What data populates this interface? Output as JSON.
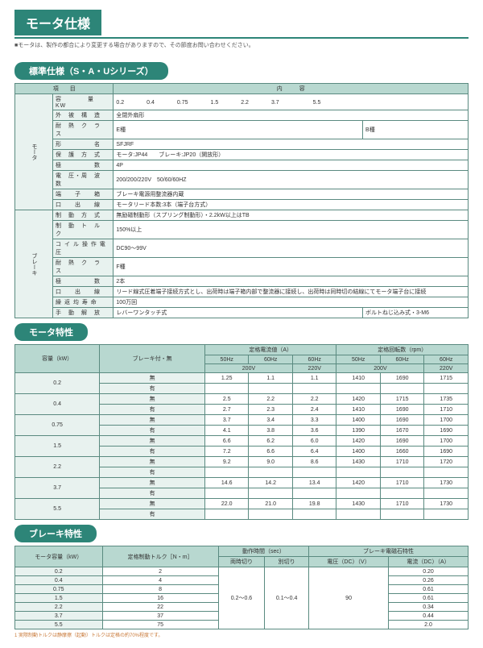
{
  "page": {
    "title": "モータ仕様",
    "subtitle": "■モータは、製作の都合により変更する場合がありますので、その節度お問い合わせください。"
  },
  "sec1": {
    "header": "標準仕様（S・A・Uシリーズ）",
    "h_item": "項　　目",
    "h_content": "内　　　容",
    "rows": {
      "r1l": "容　　　　量　　KW",
      "r1v": "0.2　　　　0.4　　　　0.75　　　　1.5　　　　2.2　　　　3.7　　　　　　5.5",
      "r2l": "外　被　構　造",
      "r2v": "全閉外扇形",
      "r3l": "耐　熱　ク　ラ　ス",
      "r3va": "E種",
      "r3vb": "B種",
      "r4l": "形　　　　　名",
      "r4v": "SFJRF",
      "r5l": "保　護　方　式",
      "r5v": "モータ:JP44　　ブレーキ:JP20（開放形）",
      "r6l": "極　　　　　数",
      "r6v": "4P",
      "r7l": "電　圧・周　波　数",
      "r7v": "200/200/220V　50/60/60HZ",
      "r8l": "端　　子　　箱",
      "r8v": "ブレーキ電源用整流器内蔵",
      "r9l": "口　　出　　線",
      "r9v": "モータリード本数:3本（端子台方式）",
      "r10l": "制　動　方　式",
      "r10v": "無励磁制動形（スプリング制動形）・2.2kW以上はTB",
      "r11l": "制　動　ト　ル　ク",
      "r11v": "150%以上",
      "r12l": "コ イ ル 操 作 電 圧",
      "r12v": "DC90〜99V",
      "r13l": "耐　熱　ク　ラ　ス",
      "r13v": "F種",
      "r14l": "極　　　　　数",
      "r14v": "2本",
      "r15l": "口　　出　　線",
      "r15v": "リード線式圧着端子接続方式とし、出荷時は端子箱内部で整流器に接続し、出荷時は同時切の結線にてモータ端子台に接続",
      "r16l": "繰 返 均 寿 命",
      "r16v": "100万回",
      "r17l": "手　動　解　放",
      "r17va": "レバーワンタッチ式",
      "r17vb": "ボルトねじ込み式・3-M6"
    },
    "side1": "モータ",
    "side2": "ブレーキ"
  },
  "sec2": {
    "header": "モータ特性",
    "h": {
      "cap": "容量（kW）",
      "brk": "ブレーキ付・無",
      "cur": "定格電流値（A）",
      "rpm": "定格回転数（rpm）",
      "c50": "50Hz",
      "c60a": "60Hz",
      "c60b": "60Hz",
      "v200": "200V",
      "v220": "220V"
    },
    "rows": [
      {
        "kw": "0.2",
        "a": "無",
        "c": [
          "1.25",
          "1.1",
          "1.1"
        ],
        "r": [
          "1410",
          "1690",
          "1715"
        ]
      },
      {
        "kw": "",
        "a": "有",
        "c": [
          "",
          "",
          ""
        ],
        "r": [
          "",
          "",
          ""
        ]
      },
      {
        "kw": "0.4",
        "a": "無",
        "c": [
          "2.5",
          "2.2",
          "2.2"
        ],
        "r": [
          "1420",
          "1715",
          "1735"
        ]
      },
      {
        "kw": "",
        "a": "有",
        "c": [
          "2.7",
          "2.3",
          "2.4"
        ],
        "r": [
          "1410",
          "1690",
          "1710"
        ]
      },
      {
        "kw": "0.75",
        "a": "無",
        "c": [
          "3.7",
          "3.4",
          "3.3"
        ],
        "r": [
          "1400",
          "1690",
          "1700"
        ]
      },
      {
        "kw": "",
        "a": "有",
        "c": [
          "4.1",
          "3.8",
          "3.6"
        ],
        "r": [
          "1390",
          "1670",
          "1690"
        ]
      },
      {
        "kw": "1.5",
        "a": "無",
        "c": [
          "6.6",
          "6.2",
          "6.0"
        ],
        "r": [
          "1420",
          "1690",
          "1700"
        ]
      },
      {
        "kw": "",
        "a": "有",
        "c": [
          "7.2",
          "6.6",
          "6.4"
        ],
        "r": [
          "1400",
          "1660",
          "1690"
        ]
      },
      {
        "kw": "2.2",
        "a": "無",
        "c": [
          "9.2",
          "9.0",
          "8.6"
        ],
        "r": [
          "1430",
          "1710",
          "1720"
        ]
      },
      {
        "kw": "",
        "a": "有",
        "c": [
          "",
          "",
          ""
        ],
        "r": [
          "",
          "",
          ""
        ]
      },
      {
        "kw": "3.7",
        "a": "無",
        "c": [
          "14.6",
          "14.2",
          "13.4"
        ],
        "r": [
          "1420",
          "1710",
          "1730"
        ]
      },
      {
        "kw": "",
        "a": "有",
        "c": [
          "",
          "",
          ""
        ],
        "r": [
          "",
          "",
          ""
        ]
      },
      {
        "kw": "5.5",
        "a": "無",
        "c": [
          "22.0",
          "21.0",
          "19.8"
        ],
        "r": [
          "1430",
          "1710",
          "1730"
        ]
      },
      {
        "kw": "",
        "a": "有",
        "c": [
          "",
          "",
          ""
        ],
        "r": [
          "",
          "",
          ""
        ]
      }
    ]
  },
  "sec3": {
    "header": "ブレーキ特性",
    "h": {
      "cap": "モータ容量（kW）",
      "trq": "定格制動トルク［N・m］",
      "time": "動作時間（sec）",
      "mag": "ブレーキ電磁石特性",
      "t1": "両時切り",
      "t2": "別切り",
      "v": "電圧（DC）（V）",
      "a": "電流（DC）（A）"
    },
    "rows": [
      {
        "kw": "0.2",
        "tq": "2",
        "a": "0.20"
      },
      {
        "kw": "0.4",
        "tq": "4",
        "a": "0.26"
      },
      {
        "kw": "0.75",
        "tq": "8",
        "a": "0.61"
      },
      {
        "kw": "1.5",
        "tq": "16",
        "a": "0.61"
      },
      {
        "kw": "2.2",
        "tq": "22",
        "a": "0.34"
      },
      {
        "kw": "3.7",
        "tq": "37",
        "a": "0.44"
      },
      {
        "kw": "5.5",
        "tq": "75",
        "a": "2.0"
      }
    ],
    "merged": {
      "t1": "0.2〜0.6",
      "t2": "0.1〜0.4",
      "v": "90"
    },
    "foot": "1 実際制動トルクは静摩擦（起動）トルクは定格の約70%程度です。"
  }
}
